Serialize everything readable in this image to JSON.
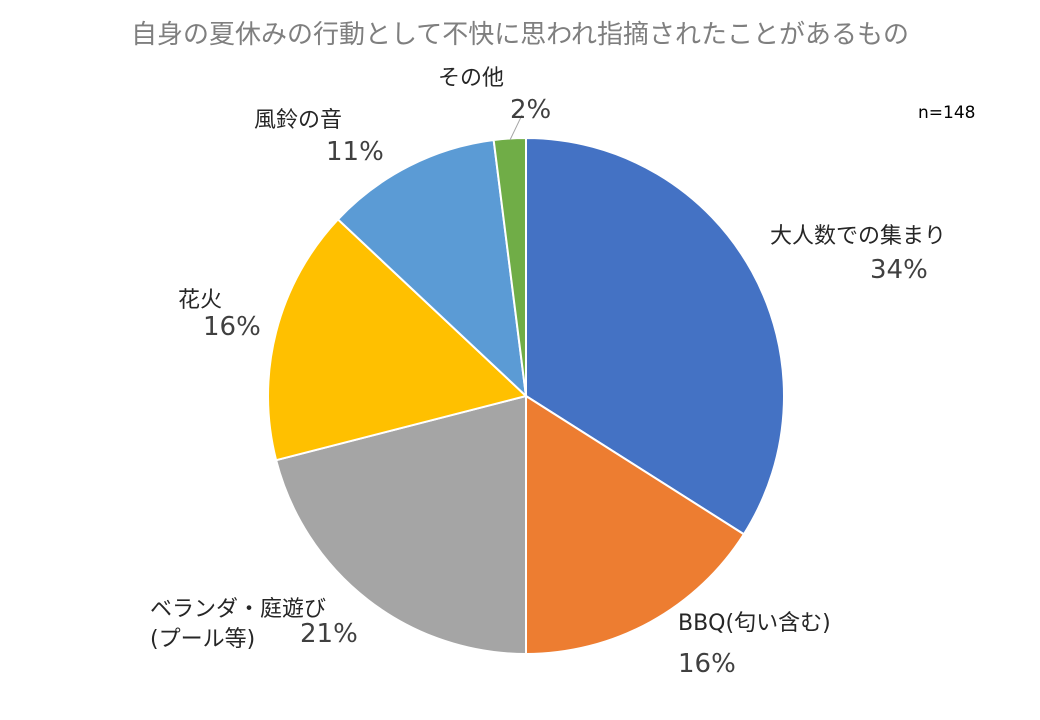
{
  "chart_data": {
    "type": "pie",
    "title": "自身の夏休みの行動として不快に思われ指摘されたことがあるもの",
    "note": "n=148",
    "slices": [
      {
        "label": "大人数での集まり",
        "value": 34,
        "value_label": "34%",
        "color": "#4472C4"
      },
      {
        "label": "BBQ(匂い含む)",
        "value": 16,
        "value_label": "16%",
        "color": "#ED7D31"
      },
      {
        "label_lines": [
          "ベランダ・庭遊び",
          "(プール等)"
        ],
        "value": 21,
        "value_label": "21%",
        "color": "#A5A5A5"
      },
      {
        "label": "花火",
        "value": 16,
        "value_label": "16%",
        "color": "#FFC000"
      },
      {
        "label": "風鈴の音",
        "value": 11,
        "value_label": "11%",
        "color": "#5B9BD5"
      },
      {
        "label": "その他",
        "value": 2,
        "value_label": "2%",
        "color": "#70AD47"
      }
    ],
    "legend": "none"
  }
}
